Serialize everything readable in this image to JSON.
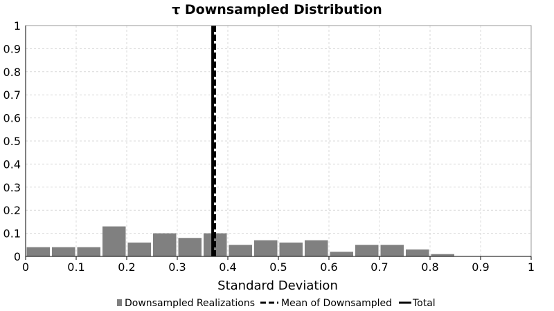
{
  "chart_data": {
    "type": "bar",
    "title": "τ Downsampled Distribution",
    "xlabel": "Standard Deviation",
    "ylabel": "",
    "xlim": [
      0,
      1
    ],
    "ylim": [
      0,
      1
    ],
    "x_ticks": [
      "0",
      "0.1",
      "0.2",
      "0.3",
      "0.4",
      "0.5",
      "0.6",
      "0.7",
      "0.8",
      "0.9",
      "1"
    ],
    "y_ticks": [
      "0",
      "0.1",
      "0.2",
      "0.3",
      "0.4",
      "0.5",
      "0.6",
      "0.7",
      "0.8",
      "0.9",
      "1"
    ],
    "grid": true,
    "bin_width": 0.05,
    "bins": [
      {
        "x0": 0.0,
        "x1": 0.05,
        "value": 0.04
      },
      {
        "x0": 0.05,
        "x1": 0.1,
        "value": 0.04
      },
      {
        "x0": 0.1,
        "x1": 0.15,
        "value": 0.04
      },
      {
        "x0": 0.15,
        "x1": 0.2,
        "value": 0.13
      },
      {
        "x0": 0.2,
        "x1": 0.25,
        "value": 0.06
      },
      {
        "x0": 0.25,
        "x1": 0.3,
        "value": 0.1
      },
      {
        "x0": 0.3,
        "x1": 0.35,
        "value": 0.08
      },
      {
        "x0": 0.35,
        "x1": 0.4,
        "value": 0.1
      },
      {
        "x0": 0.4,
        "x1": 0.45,
        "value": 0.05
      },
      {
        "x0": 0.45,
        "x1": 0.5,
        "value": 0.07
      },
      {
        "x0": 0.5,
        "x1": 0.55,
        "value": 0.06
      },
      {
        "x0": 0.55,
        "x1": 0.6,
        "value": 0.07
      },
      {
        "x0": 0.6,
        "x1": 0.65,
        "value": 0.02
      },
      {
        "x0": 0.65,
        "x1": 0.7,
        "value": 0.05
      },
      {
        "x0": 0.7,
        "x1": 0.75,
        "value": 0.05
      },
      {
        "x0": 0.75,
        "x1": 0.8,
        "value": 0.03
      },
      {
        "x0": 0.8,
        "x1": 0.85,
        "value": 0.01
      }
    ],
    "lines": [
      {
        "name": "Mean of Downsampled",
        "x": 0.374,
        "style": "dashed",
        "color": "#000000"
      },
      {
        "name": "Total",
        "x": 0.37,
        "style": "solid",
        "color": "#000000"
      }
    ],
    "legend": {
      "placement": "bottom",
      "entries": [
        {
          "name": "Downsampled Realizations",
          "kind": "bar",
          "color": "#808080"
        },
        {
          "name": "Mean of Downsampled",
          "kind": "dashed-line",
          "color": "#000000"
        },
        {
          "name": "Total",
          "kind": "solid-line",
          "color": "#000000"
        }
      ]
    },
    "colors": {
      "bar": "#808080",
      "grid": "#d9d9d9",
      "axis": "#000000"
    }
  }
}
